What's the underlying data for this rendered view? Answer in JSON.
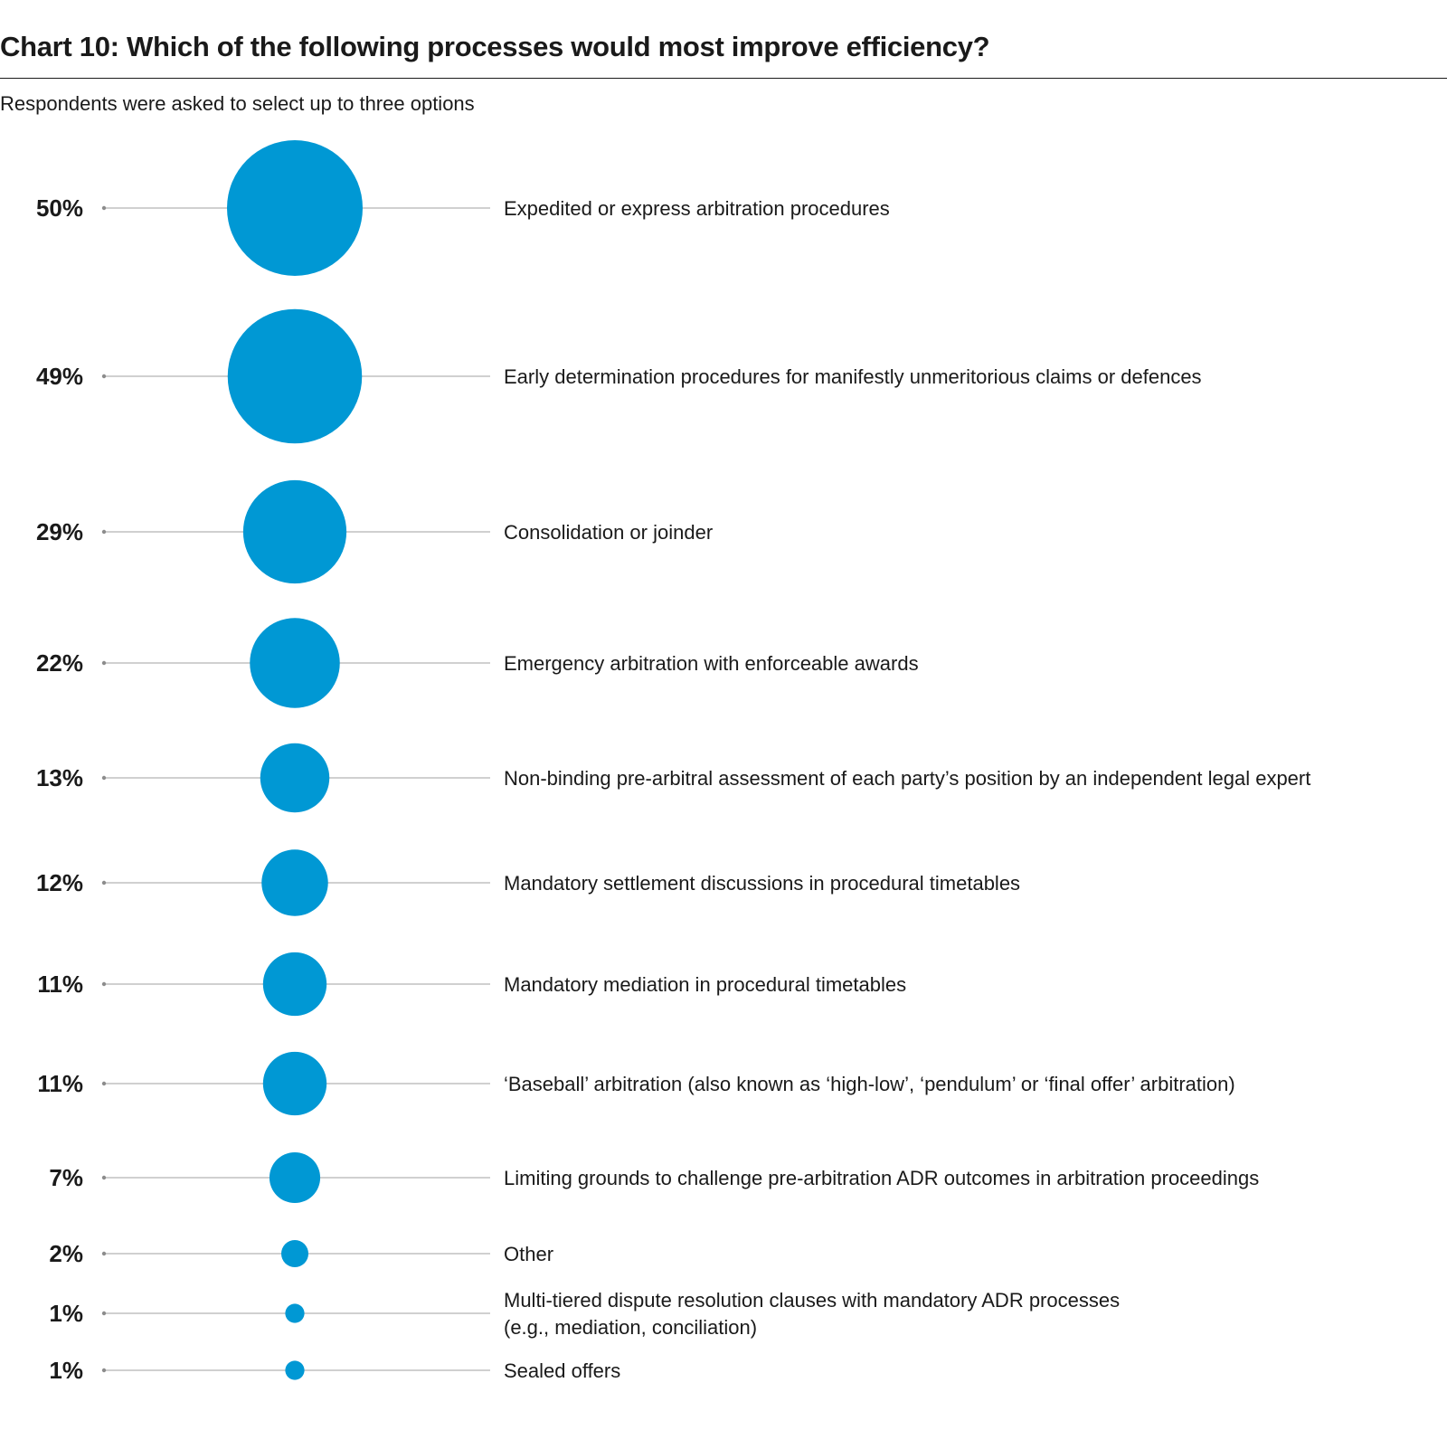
{
  "colors": {
    "bubble": "#0098d4",
    "connector": "#b3b3b3",
    "text": "#1a1a1a"
  },
  "chart_data": {
    "type": "bubble",
    "title": "Chart 10: Which of the following processes would most improve efficiency?",
    "subtitle": "Respondents were asked to select up to three options",
    "unit": "%",
    "categories": [
      "Expedited or express arbitration procedures",
      "Early determination procedures for manifestly unmeritorious claims or defences",
      "Consolidation or joinder",
      "Emergency arbitration with enforceable awards",
      "Non-binding pre-arbitral assessment of each party’s position by an independent legal expert",
      "Mandatory settlement discussions in procedural timetables",
      "Mandatory mediation in procedural timetables",
      "‘Baseball’ arbitration (also known as ‘high-low’, ‘pendulum’ or ‘final offer’ arbitration)",
      "Limiting grounds to challenge pre-arbitration ADR outcomes in arbitration proceedings",
      "Other",
      "Multi-tiered dispute resolution clauses with mandatory ADR processes\n(e.g., mediation, conciliation)",
      "Sealed offers"
    ],
    "values": [
      50,
      49,
      29,
      22,
      13,
      12,
      11,
      11,
      7,
      2,
      1,
      1
    ],
    "value_labels": [
      "50%",
      "49%",
      "29%",
      "22%",
      "13%",
      "12%",
      "11%",
      "11%",
      "7%",
      "2%",
      "1%",
      "1%"
    ]
  }
}
